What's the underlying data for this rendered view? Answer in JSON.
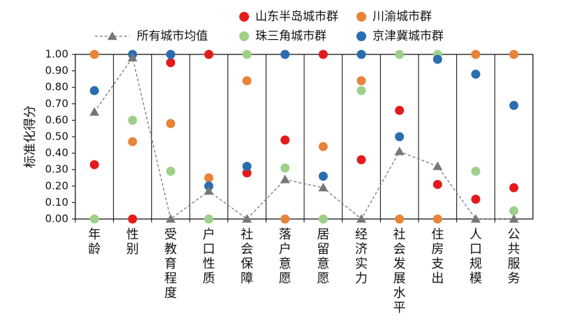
{
  "chart_data": {
    "type": "scatter",
    "ylabel": "标准化得分",
    "ylim": [
      0,
      1
    ],
    "yticks": [
      "0.00",
      "0.10",
      "0.20",
      "0.30",
      "0.40",
      "0.50",
      "0.60",
      "0.70",
      "0.80",
      "0.90",
      "1.00"
    ],
    "categories": [
      "年龄",
      "性别",
      "受教育程度",
      "户口性质",
      "社会保障",
      "落户意愿",
      "居留意愿",
      "经济实力",
      "社会发展水平",
      "住房支出",
      "人口规模",
      "公共服务"
    ],
    "grid": "vertical separators",
    "legend_position": "top",
    "series": [
      {
        "name": "山东半岛城市群",
        "color": "#e31a1c",
        "marker": "circle",
        "values": [
          0.33,
          0.0,
          0.95,
          1.0,
          0.28,
          0.48,
          1.0,
          0.36,
          0.66,
          0.21,
          0.12,
          0.19
        ]
      },
      {
        "name": "川渝城市群",
        "color": "#e8833a",
        "marker": "circle",
        "values": [
          1.0,
          0.47,
          0.58,
          0.25,
          0.84,
          0.0,
          0.44,
          0.84,
          0.0,
          0.0,
          1.0,
          1.0
        ]
      },
      {
        "name": "珠三角城市群",
        "color": "#9fd08a",
        "marker": "circle",
        "values": [
          0.0,
          0.6,
          0.29,
          0.0,
          1.0,
          0.31,
          0.0,
          0.78,
          1.0,
          1.0,
          0.29,
          0.05
        ]
      },
      {
        "name": "京津冀城市群",
        "color": "#2a6db0",
        "marker": "circle",
        "values": [
          0.78,
          1.0,
          1.0,
          0.2,
          0.32,
          1.0,
          0.26,
          1.0,
          0.5,
          0.97,
          0.88,
          0.69
        ]
      },
      {
        "name": "所有城市均值",
        "color": "#777777",
        "marker": "triangle",
        "line": "dashed",
        "values": [
          0.65,
          0.98,
          0.0,
          0.17,
          0.0,
          0.24,
          0.19,
          0.0,
          0.41,
          0.32,
          0.0,
          0.0
        ]
      }
    ]
  }
}
